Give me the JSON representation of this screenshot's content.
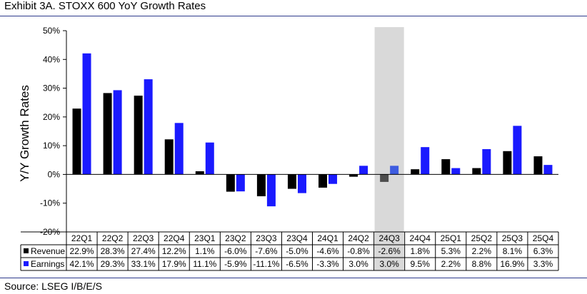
{
  "page": {
    "title": "Exhibit 3A.  STOXX 600 YoY Growth Rates",
    "source": "Source: LSEG I/B/E/S"
  },
  "chart_data": {
    "type": "bar",
    "title": "Exhibit 3A.  STOXX 600 YoY Growth Rates",
    "xlabel": "",
    "ylabel": "Y/Y Growth Rates",
    "ylim": [
      -20,
      50
    ],
    "yticks": [
      50,
      40,
      30,
      20,
      10,
      0,
      -10,
      -20
    ],
    "ytick_labels": [
      "50%",
      "40%",
      "30%",
      "20%",
      "10%",
      "0%",
      "-10%",
      "-20%"
    ],
    "grid": false,
    "highlight_category": "24Q3",
    "categories": [
      "22Q1",
      "22Q2",
      "22Q3",
      "22Q4",
      "23Q1",
      "23Q2",
      "23Q3",
      "23Q4",
      "24Q1",
      "24Q2",
      "24Q3",
      "24Q4",
      "25Q1",
      "25Q2",
      "25Q3",
      "25Q4"
    ],
    "series": [
      {
        "name": "Revenue",
        "color": "#000000",
        "highlight_color": "#4d4d4d",
        "values": [
          22.9,
          28.3,
          27.4,
          12.2,
          1.1,
          -6.0,
          -7.6,
          -5.0,
          -4.6,
          -0.8,
          -2.6,
          1.8,
          5.3,
          2.2,
          8.1,
          6.3
        ],
        "labels": [
          "22.9%",
          "28.3%",
          "27.4%",
          "12.2%",
          "1.1%",
          "-6.0%",
          "-7.6%",
          "-5.0%",
          "-4.6%",
          "-0.8%",
          "-2.6%",
          "1.8%",
          "5.3%",
          "2.2%",
          "8.1%",
          "6.3%"
        ]
      },
      {
        "name": "Earnings",
        "color": "#1a1aff",
        "highlight_color": "#3d5ce0",
        "values": [
          42.1,
          29.3,
          33.1,
          17.9,
          11.1,
          -5.9,
          -11.1,
          -6.5,
          -3.3,
          3.0,
          3.0,
          9.5,
          2.2,
          8.8,
          16.9,
          3.3
        ],
        "labels": [
          "42.1%",
          "29.3%",
          "33.1%",
          "17.9%",
          "11.1%",
          "-5.9%",
          "-11.1%",
          "-6.5%",
          "-3.3%",
          "3.0%",
          "3.0%",
          "9.5%",
          "2.2%",
          "8.8%",
          "16.9%",
          "3.3%"
        ]
      }
    ],
    "colors": {
      "highlight_band": "#d9d9d9",
      "axis": "#000000",
      "rule": "#2e3a8c"
    }
  }
}
